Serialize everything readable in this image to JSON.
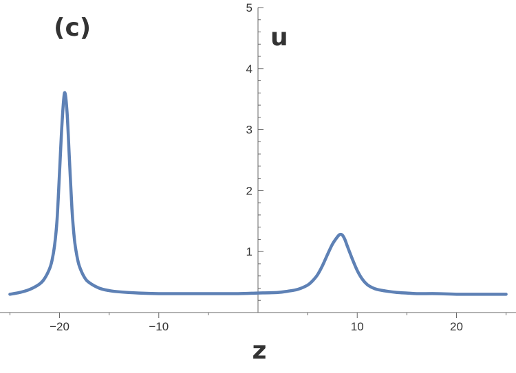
{
  "panel_label": "(c)",
  "chart_data": {
    "type": "line",
    "xlabel": "z",
    "ylabel": "u",
    "xlim": [
      -26,
      26
    ],
    "ylim": [
      0,
      5
    ],
    "xticks": [
      -20,
      -10,
      10,
      20
    ],
    "xtick_labels": [
      "−20",
      "−10",
      "10",
      "20"
    ],
    "yticks": [
      1,
      2,
      3,
      4,
      5
    ],
    "ytick_labels": [
      "1",
      "2",
      "3",
      "4",
      "5"
    ],
    "grid": false,
    "line_color": "#5e81b5",
    "series": [
      {
        "x": [
          -25,
          -24,
          -23,
          -22,
          -21.5,
          -21,
          -20.75,
          -20.5,
          -20.25,
          -20,
          -19.75,
          -19.5,
          -19.25,
          -19,
          -18.75,
          -18.5,
          -18.25,
          -18,
          -17.5,
          -17,
          -16,
          -15,
          -14,
          -12,
          -10,
          -8,
          -6,
          -4,
          -2,
          0,
          2,
          3,
          4,
          5,
          5.5,
          6,
          6.5,
          7,
          7.5,
          8,
          8.25,
          8.5,
          8.75,
          9,
          9.5,
          10,
          10.5,
          11,
          11.5,
          12,
          13,
          14,
          15,
          16,
          18,
          20,
          22,
          24,
          25
        ],
        "y": [
          0.3,
          0.33,
          0.38,
          0.47,
          0.56,
          0.72,
          0.86,
          1.1,
          1.52,
          2.3,
          3.1,
          3.6,
          3.3,
          2.5,
          1.7,
          1.2,
          0.93,
          0.76,
          0.58,
          0.49,
          0.4,
          0.36,
          0.34,
          0.32,
          0.31,
          0.31,
          0.31,
          0.31,
          0.31,
          0.32,
          0.33,
          0.35,
          0.38,
          0.45,
          0.52,
          0.62,
          0.77,
          0.95,
          1.12,
          1.24,
          1.28,
          1.27,
          1.2,
          1.09,
          0.88,
          0.69,
          0.55,
          0.46,
          0.41,
          0.38,
          0.35,
          0.33,
          0.32,
          0.31,
          0.31,
          0.3,
          0.3,
          0.3,
          0.3
        ]
      }
    ]
  }
}
